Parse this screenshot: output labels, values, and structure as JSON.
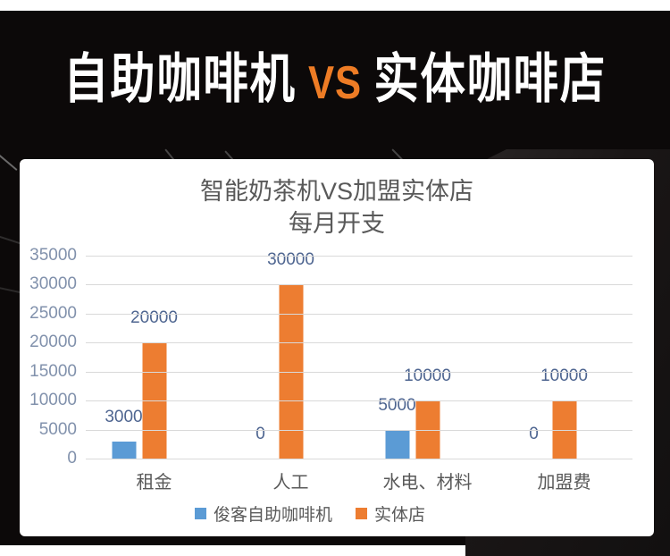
{
  "hero": {
    "title_left": "自助咖啡机",
    "title_vs": "VS",
    "title_right": "实体咖啡店"
  },
  "colors": {
    "hero_accent_orange": "#ee7c25",
    "series_blue": "#5b9bd5",
    "series_orange": "#ed7d31",
    "grid_gray": "#d9d9d9",
    "axis_label": "#8191ac",
    "data_label": "#4e6590",
    "chart_text_gray": "#595959"
  },
  "chart_data": {
    "type": "bar",
    "title": "智能奶茶机VS加盟实体店 每月开支",
    "title_lines": [
      "智能奶茶机VS加盟实体店",
      "每月开支"
    ],
    "categories": [
      "租金",
      "人工",
      "水电、材料",
      "加盟费"
    ],
    "series": [
      {
        "name": "俊客自助咖啡机",
        "color": "#5b9bd5",
        "values": [
          3000,
          0,
          5000,
          0
        ]
      },
      {
        "name": "实体店",
        "color": "#ed7d31",
        "values": [
          20000,
          30000,
          10000,
          10000
        ]
      }
    ],
    "data_labels": [
      [
        "3000",
        "0",
        "5000",
        "0"
      ],
      [
        "20000",
        "30000",
        "10000",
        "10000"
      ]
    ],
    "ylim": [
      0,
      35000
    ],
    "y_tick_step": 5000,
    "y_ticks": [
      "0",
      "5000",
      "10000",
      "15000",
      "20000",
      "25000",
      "30000",
      "35000"
    ],
    "grid": true,
    "legend_position": "bottom",
    "xlabel": "",
    "ylabel": ""
  }
}
